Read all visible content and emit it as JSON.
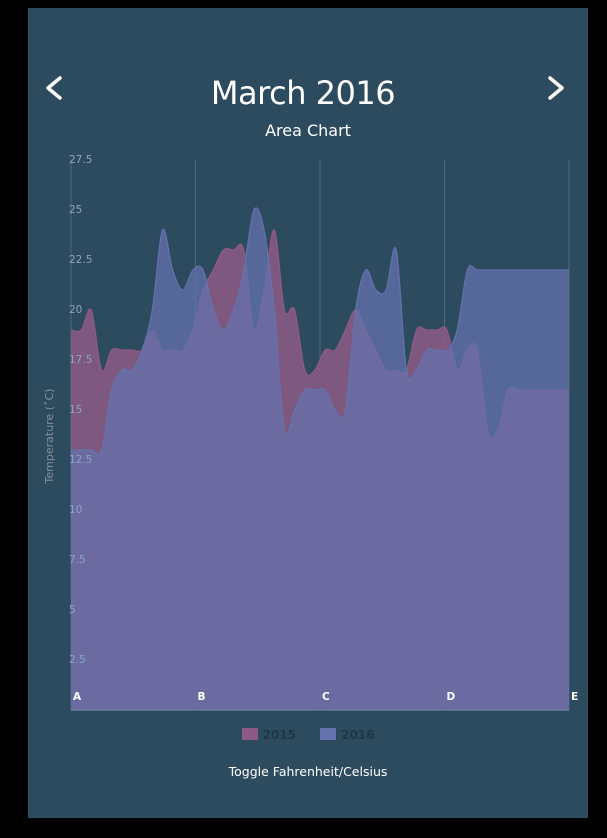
{
  "header": {
    "title": "March 2016",
    "subtitle": "Area Chart",
    "prev_icon": "chevron-left-icon",
    "next_icon": "chevron-right-icon"
  },
  "footer": {
    "toggle_label": "Toggle Fahrenheit/Celsius"
  },
  "colors": {
    "background": "#2d4b5e",
    "series_2015": "#8e5a85",
    "series_2016": "#6472ad",
    "overlap": "#6d6fa4",
    "axis_text": "#8aa3c7"
  },
  "chart_data": {
    "type": "area",
    "title": "March 2016",
    "subtitle": "Area Chart",
    "xlabel": "",
    "ylabel": "Temperature (˚C)",
    "ylim": [
      0,
      27.5
    ],
    "yticks": [
      2.5,
      5,
      7.5,
      10,
      12.5,
      15,
      17.5,
      20,
      22.5,
      25,
      27.5
    ],
    "categories": [
      "A",
      "B",
      "C",
      "D",
      "E"
    ],
    "x": [
      1,
      2,
      3,
      4,
      5,
      6,
      7,
      8,
      9,
      10,
      11,
      12,
      13,
      14,
      15,
      16,
      17,
      18,
      19,
      20,
      21,
      22,
      23,
      24,
      25,
      26,
      27,
      28,
      29,
      30,
      31,
      32,
      33,
      34,
      35,
      36,
      37,
      38,
      39,
      40,
      41,
      42,
      43,
      44,
      45,
      46,
      47,
      48,
      49,
      50
    ],
    "grid": "vertical",
    "legend": "bottom-center",
    "series": [
      {
        "name": "2015",
        "color": "#8e5a85",
        "values": [
          19,
          19,
          20,
          17,
          18,
          18,
          18,
          18,
          19,
          18,
          18,
          18,
          19,
          21,
          22,
          23,
          23,
          23,
          19,
          21,
          24,
          20,
          20,
          17,
          17,
          18,
          18,
          19,
          20,
          19,
          18,
          17,
          17,
          17,
          19,
          19,
          19,
          19,
          17,
          18,
          18,
          14,
          14,
          16,
          16,
          16,
          16,
          16,
          16,
          16
        ]
      },
      {
        "name": "2016",
        "color": "#6472ad",
        "values": [
          13,
          13,
          13,
          13,
          16,
          17,
          17,
          18,
          20,
          24,
          22,
          21,
          22,
          22,
          20,
          19,
          20,
          22,
          25,
          24,
          20,
          14,
          15,
          16,
          16,
          16,
          15,
          15,
          20,
          22,
          21,
          21,
          23,
          17,
          17,
          18,
          18,
          18,
          19,
          22,
          22,
          22,
          22,
          22,
          22,
          22,
          22,
          22,
          22,
          22
        ]
      }
    ]
  }
}
